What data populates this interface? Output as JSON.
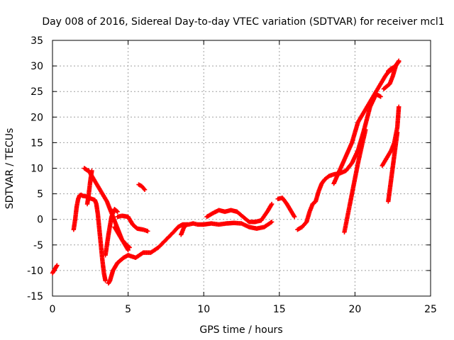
{
  "chart_data": {
    "type": "scatter",
    "title": "Day 008 of 2016, Sidereal Day-to-day VTEC variation (SDTVAR) for receiver mcl1",
    "xlabel": "GPS time / hours",
    "ylabel": "SDTVAR / TECUs",
    "xlim": [
      0,
      25
    ],
    "ylim": [
      -15,
      35
    ],
    "xticks": [
      0,
      5,
      10,
      15,
      20,
      25
    ],
    "yticks": [
      -15,
      -10,
      -5,
      0,
      5,
      10,
      15,
      20,
      25,
      30,
      35
    ],
    "grid": true,
    "marker": "+",
    "color": "#ff0000",
    "series": [
      {
        "name": "seg01",
        "x": [
          0.0,
          0.1,
          0.2,
          0.3
        ],
        "y": [
          -10.5,
          -10.0,
          -9.5,
          -9.0
        ]
      },
      {
        "name": "seg02",
        "x": [
          1.4,
          1.5,
          1.6,
          1.7,
          1.8,
          1.9,
          2.0,
          2.2,
          2.4,
          2.6,
          2.8,
          2.9,
          3.0,
          3.1,
          3.2,
          3.3,
          3.4,
          3.5
        ],
        "y": [
          -2.0,
          0.0,
          2.5,
          4.0,
          4.7,
          4.8,
          4.6,
          4.5,
          4.2,
          4.0,
          3.8,
          3.0,
          1.0,
          -2.0,
          -5.0,
          -8.0,
          -10.5,
          -12.0
        ]
      },
      {
        "name": "seg03",
        "x": [
          2.1,
          2.2,
          2.3,
          2.4,
          2.5,
          2.6,
          2.8,
          3.0,
          3.2,
          3.4,
          3.6,
          3.8,
          4.0,
          4.2,
          4.4,
          4.6,
          4.8,
          5.0
        ],
        "y": [
          10.0,
          9.8,
          9.6,
          9.5,
          9.0,
          8.5,
          7.5,
          6.5,
          5.5,
          4.5,
          3.5,
          2.0,
          0.5,
          -1.0,
          -2.5,
          -4.0,
          -5.0,
          -6.0
        ]
      },
      {
        "name": "seg04",
        "x": [
          2.3,
          2.4,
          2.5,
          2.6
        ],
        "y": [
          3.0,
          5.0,
          7.5,
          9.5
        ]
      },
      {
        "name": "seg05",
        "x": [
          3.7,
          3.8,
          3.9,
          4.0,
          4.1,
          4.2,
          4.3,
          4.5,
          4.7,
          5.0,
          5.5,
          6.0,
          6.5,
          7.0,
          7.5,
          8.0,
          8.3,
          8.6,
          9.0,
          9.3,
          9.6,
          10.0
        ],
        "y": [
          -12.5,
          -12.0,
          -11.0,
          -10.0,
          -9.5,
          -9.0,
          -8.5,
          -8.0,
          -7.5,
          -7.0,
          -7.5,
          -6.5,
          -6.5,
          -5.5,
          -4.0,
          -2.5,
          -1.5,
          -1.0,
          -1.0,
          -0.8,
          -1.0,
          -1.0
        ]
      },
      {
        "name": "seg06",
        "x": [
          3.5,
          3.7,
          3.9,
          4.1,
          4.3
        ],
        "y": [
          -7.0,
          -3.0,
          0.5,
          2.0,
          1.5
        ]
      },
      {
        "name": "seg07",
        "x": [
          4.3,
          4.6,
          5.0,
          5.3,
          5.6,
          6.0,
          6.3
        ],
        "y": [
          0.5,
          0.7,
          0.5,
          -1.0,
          -1.8,
          -2.0,
          -2.3
        ]
      },
      {
        "name": "seg08",
        "x": [
          4.1,
          4.3,
          4.6,
          4.9,
          5.1
        ],
        "y": [
          -1.5,
          -2.5,
          -4.0,
          -5.0,
          -5.5
        ]
      },
      {
        "name": "seg09",
        "x": [
          5.7,
          5.9,
          6.1
        ],
        "y": [
          6.8,
          6.5,
          5.8
        ]
      },
      {
        "name": "seg10",
        "x": [
          8.5,
          8.7,
          8.9
        ],
        "y": [
          -3.0,
          -1.5,
          -1.0
        ]
      },
      {
        "name": "seg11",
        "x": [
          10.2,
          10.6,
          11.0,
          11.4,
          11.8,
          12.2,
          12.6,
          13.0,
          13.4,
          13.8,
          14.2,
          14.5
        ],
        "y": [
          0.5,
          1.2,
          1.8,
          1.5,
          1.8,
          1.5,
          0.5,
          -0.5,
          -0.5,
          -0.2,
          1.5,
          3.0
        ]
      },
      {
        "name": "seg12",
        "x": [
          10.0,
          10.5,
          11.0,
          11.5,
          12.0,
          12.5,
          13.0,
          13.5,
          14.0,
          14.5
        ],
        "y": [
          -1.0,
          -0.8,
          -1.0,
          -0.8,
          -0.7,
          -0.8,
          -1.5,
          -1.8,
          -1.5,
          -0.5
        ]
      },
      {
        "name": "seg13",
        "x": [
          14.9,
          15.2,
          15.5,
          15.8,
          16.0
        ],
        "y": [
          4.0,
          4.2,
          3.0,
          1.5,
          0.5
        ]
      },
      {
        "name": "seg14",
        "x": [
          16.2,
          16.5,
          16.8,
          17.0,
          17.2,
          17.4,
          17.6,
          17.8,
          18.0,
          18.3,
          18.6,
          19.0,
          19.4,
          19.8,
          20.2,
          20.6,
          21.0,
          21.4,
          21.7
        ],
        "y": [
          -2.0,
          -1.5,
          -0.5,
          1.5,
          3.0,
          3.5,
          5.5,
          7.0,
          7.8,
          8.5,
          8.8,
          9.0,
          9.5,
          11.0,
          13.5,
          17.5,
          22.0,
          24.5,
          24.0
        ]
      },
      {
        "name": "seg15",
        "x": [
          18.6,
          18.9,
          19.2,
          19.5,
          19.8,
          20.0,
          20.2,
          20.4,
          20.6,
          20.8,
          21.0,
          21.2,
          21.4,
          21.6,
          21.8,
          22.0,
          22.2,
          22.4
        ],
        "y": [
          7.0,
          9.0,
          11.0,
          13.0,
          15.0,
          17.0,
          19.0,
          20.0,
          21.0,
          22.0,
          23.0,
          24.0,
          25.0,
          26.0,
          27.0,
          28.0,
          28.8,
          29.2
        ]
      },
      {
        "name": "seg16",
        "x": [
          19.3,
          19.6,
          19.9,
          20.2,
          20.5,
          20.7
        ],
        "y": [
          -2.5,
          2.0,
          6.5,
          11.0,
          15.0,
          17.5
        ]
      },
      {
        "name": "seg17",
        "x": [
          21.9,
          22.1,
          22.3,
          22.5,
          22.7,
          22.9
        ],
        "y": [
          25.5,
          26.0,
          26.5,
          28.0,
          30.0,
          31.0
        ]
      },
      {
        "name": "seg18",
        "x": [
          22.2,
          22.4,
          22.6,
          22.8,
          22.9
        ],
        "y": [
          29.0,
          29.5,
          29.8,
          30.5,
          30.8
        ]
      },
      {
        "name": "seg19",
        "x": [
          21.8,
          22.0,
          22.2,
          22.4,
          22.6,
          22.8,
          22.9
        ],
        "y": [
          10.5,
          11.5,
          12.5,
          13.5,
          15.0,
          18.0,
          22.0
        ]
      },
      {
        "name": "seg20",
        "x": [
          22.2,
          22.4,
          22.6,
          22.8
        ],
        "y": [
          3.5,
          8.0,
          12.5,
          17.0
        ]
      }
    ]
  }
}
